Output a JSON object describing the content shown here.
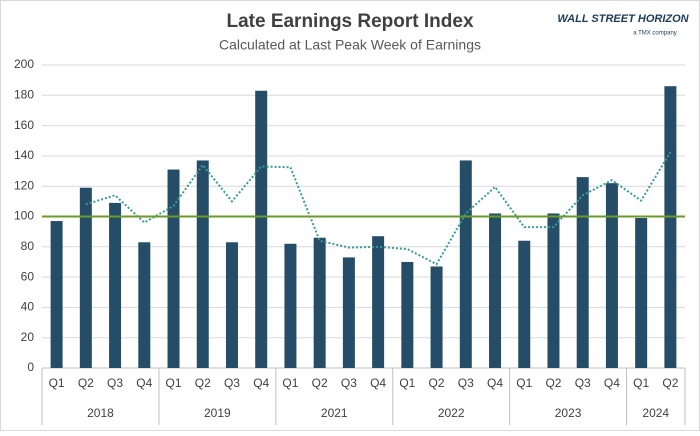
{
  "chart_data": {
    "type": "bar",
    "title": "Late Earnings Report Index",
    "subtitle": "Calculated at Last Peak Week of Earnings",
    "logo": {
      "text": "WALL STREET HORIZON",
      "sub": "a TMX company"
    },
    "categories": [
      "Q1",
      "Q2",
      "Q3",
      "Q4",
      "Q1",
      "Q2",
      "Q3",
      "Q4",
      "Q1",
      "Q2",
      "Q3",
      "Q4",
      "Q1",
      "Q2",
      "Q3",
      "Q4",
      "Q1",
      "Q2",
      "Q3",
      "Q4",
      "Q1",
      "Q2"
    ],
    "category_groups": [
      {
        "label": "2018",
        "count": 4
      },
      {
        "label": "2019",
        "count": 4
      },
      {
        "label": "2021",
        "count": 4
      },
      {
        "label": "2022",
        "count": 4
      },
      {
        "label": "2023",
        "count": 4
      },
      {
        "label": "2024",
        "count": 2
      }
    ],
    "series": [
      {
        "type": "bar",
        "color": "#264d67",
        "values": [
          97,
          119,
          109,
          83,
          131,
          137,
          83,
          183,
          82,
          86,
          73,
          87,
          70,
          67,
          137,
          102,
          84,
          102,
          126,
          122,
          99,
          186
        ]
      },
      {
        "type": "line",
        "style": "dotted",
        "color": "#3a9a9a",
        "values": [
          null,
          108,
          114,
          96,
          107,
          134,
          110,
          133,
          132.5,
          84,
          79.5,
          80,
          78.5,
          68.5,
          102,
          119.5,
          93,
          93,
          114,
          124,
          110.5,
          142.5
        ]
      }
    ],
    "reference_line": {
      "value": 100,
      "color": "#6a9a2a"
    },
    "ylim": [
      0,
      200
    ],
    "yticks": [
      0,
      20,
      40,
      60,
      80,
      100,
      120,
      140,
      160,
      180,
      200
    ],
    "grid": true
  }
}
